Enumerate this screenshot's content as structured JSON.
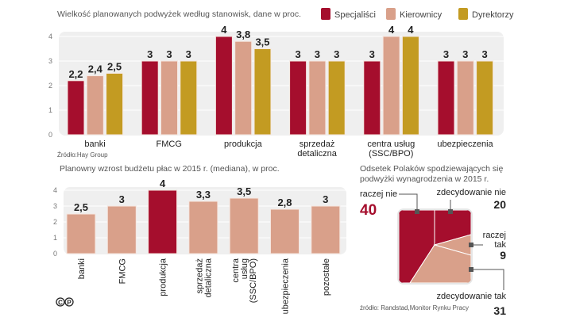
{
  "colors": {
    "specjalisci": "#a50e2d",
    "kierownicy": "#d9a08a",
    "dyrektorzy": "#c39b22",
    "plot_bg": "#efefef"
  },
  "chart_data": [
    {
      "type": "bar",
      "title": "Wielkość planowanych podwyżek według stanowisk, dane w proc.",
      "categories": [
        [
          "banki"
        ],
        [
          "FMCG"
        ],
        [
          "produkcja"
        ],
        [
          "sprzedaż",
          "detaliczna"
        ],
        [
          "centra usług",
          "(SSC/BPO)"
        ],
        [
          "ubezpieczenia"
        ]
      ],
      "series": [
        {
          "name": "Specjaliści",
          "values": [
            2.2,
            3,
            4,
            3,
            3,
            3
          ]
        },
        {
          "name": "Kierownicy",
          "values": [
            2.4,
            3,
            3.8,
            3,
            4,
            3
          ]
        },
        {
          "name": "Dyrektorzy",
          "values": [
            2.5,
            3,
            3.5,
            3,
            4,
            3
          ]
        }
      ],
      "value_labels": [
        [
          "2,2",
          "3",
          "4",
          "3",
          "3",
          "3"
        ],
        [
          "2,4",
          "3",
          "3,8",
          "3",
          "4",
          "3"
        ],
        [
          "2,5",
          "3",
          "3,5",
          "3",
          "4",
          "3"
        ]
      ],
      "yticks": [
        "0",
        "1",
        "2",
        "3",
        "4"
      ],
      "ylim": [
        0,
        4
      ],
      "grid": true,
      "legend": "top-right",
      "source": "Źródło:Hay Group"
    },
    {
      "type": "bar",
      "title": "Planowny wzrost budżetu płac w 2015 r. (mediana), w proc.",
      "categories": [
        [
          "banki"
        ],
        [
          "FMCG"
        ],
        [
          "produkcja"
        ],
        [
          "sprzedaż",
          "detaliczna"
        ],
        [
          "centra",
          "usług",
          "(SSC/BPO)"
        ],
        [
          "ubezpieczenia"
        ],
        [
          "pozostałe"
        ]
      ],
      "values": [
        2.5,
        3,
        4,
        3.3,
        3.5,
        2.8,
        3
      ],
      "value_labels": [
        "2,5",
        "3",
        "4",
        "3,3",
        "3,5",
        "2,8",
        "3"
      ],
      "highlight": [
        false,
        false,
        true,
        false,
        false,
        false,
        false
      ],
      "yticks": [
        "0",
        "1",
        "2",
        "3",
        "4"
      ],
      "ylim": [
        0,
        4
      ],
      "grid": true
    },
    {
      "type": "pie",
      "title_lines": [
        "Odsetek Polaków spodziewających się",
        "podwyżki wynagrodzenia w 2015 r."
      ],
      "slices": [
        {
          "label": "raczej nie",
          "value": 40,
          "value_label": "40"
        },
        {
          "label": "zdecydowanie nie",
          "value": 20,
          "value_label": "20"
        },
        {
          "label_lines": [
            "raczej",
            "tak"
          ],
          "value": 9,
          "value_label": "9"
        },
        {
          "label": "zdecydowanie tak",
          "value": 31,
          "value_label": "31"
        }
      ],
      "source": "źródło: Randstad,Monitor Rynku Pracy"
    }
  ],
  "logo": "©P"
}
